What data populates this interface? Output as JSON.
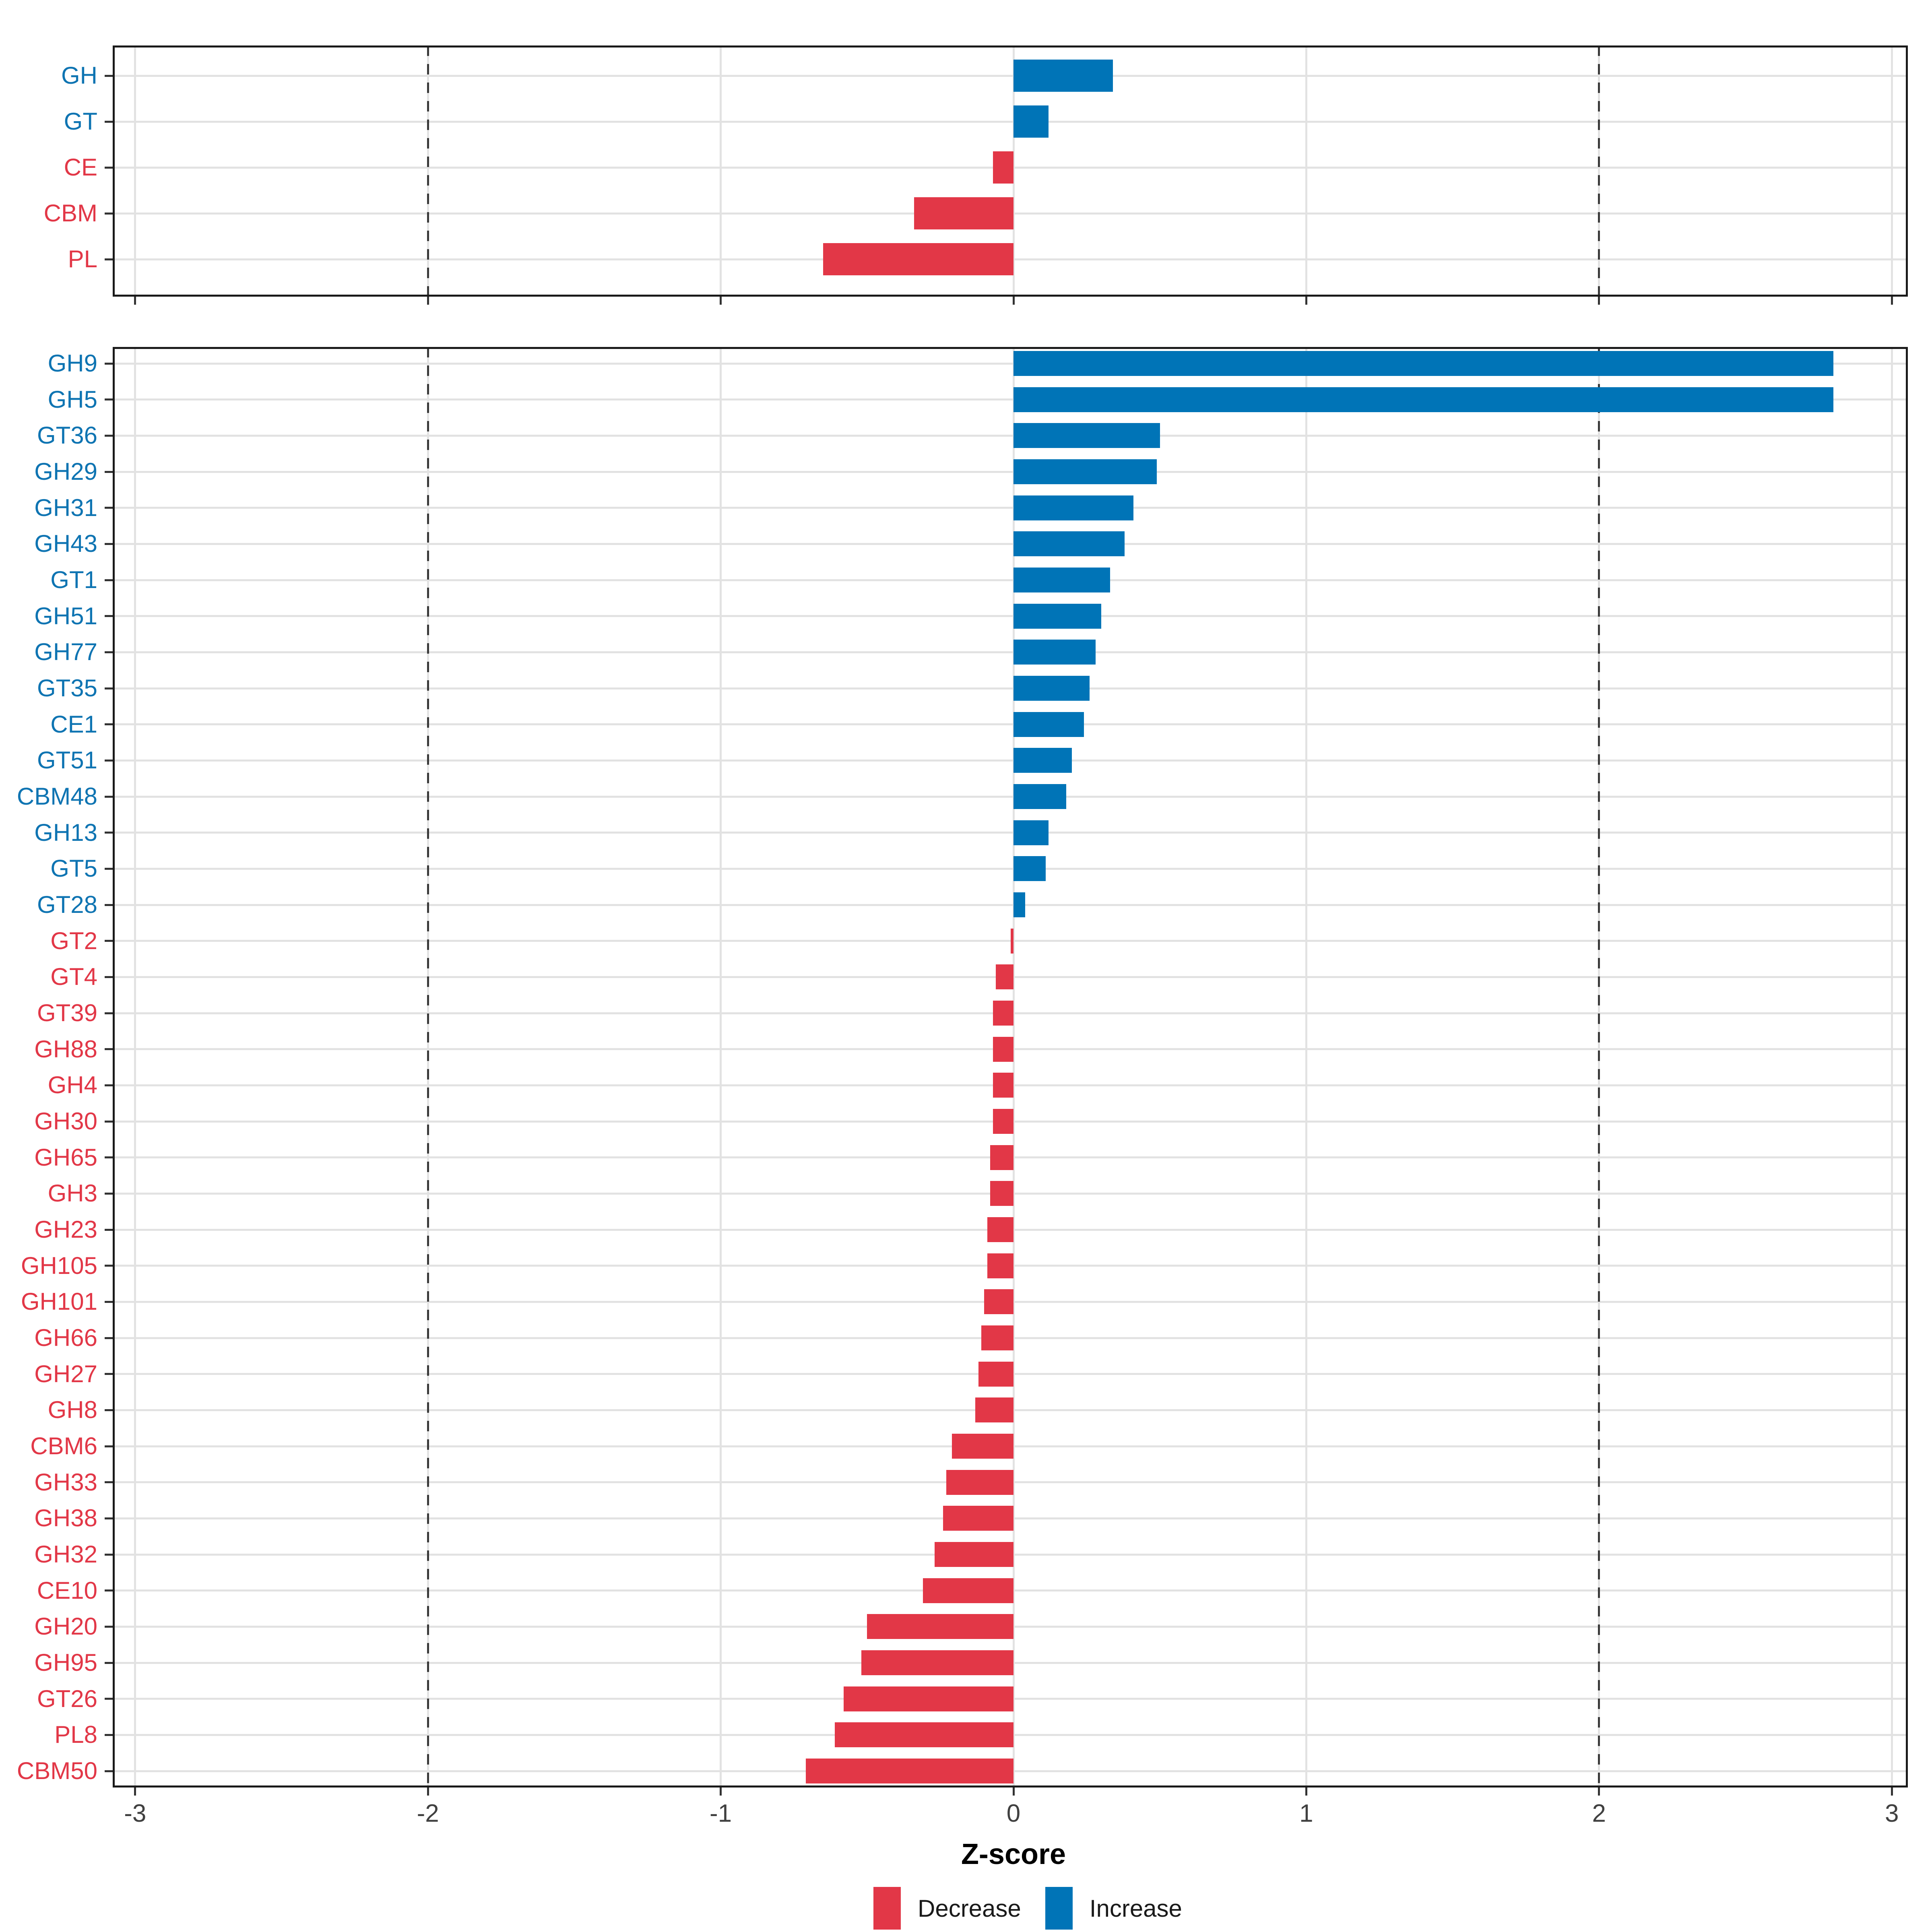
{
  "chart_data": {
    "type": "bar",
    "orientation": "horizontal",
    "xlabel": "Z-score",
    "x_ticks": [
      "-3",
      "-2",
      "-1",
      "0",
      "1",
      "2",
      "3"
    ],
    "x_tick_values": [
      -3,
      -2,
      -1,
      0,
      1,
      2,
      3
    ],
    "xlim": [
      -3.08,
      3.06
    ],
    "grid": true,
    "dashed_guides": [
      -2,
      2
    ],
    "colors": {
      "increase": "#0074b7",
      "decrease": "#e23747",
      "label_increase": "#0e74b2",
      "label_decrease": "#e23747",
      "gridline": "#e2e2e2",
      "axis_text": "#404040"
    },
    "legend": {
      "position": "bottom",
      "items": [
        {
          "label": "Decrease",
          "color": "#e23747"
        },
        {
          "label": "Increase",
          "color": "#0074b7"
        }
      ]
    },
    "panels": [
      {
        "name": "summary",
        "categories": [
          "GH",
          "GT",
          "CE",
          "CBM",
          "PL"
        ],
        "values": [
          0.34,
          0.12,
          -0.07,
          -0.34,
          -0.65
        ]
      },
      {
        "name": "families",
        "categories": [
          "GH9",
          "GH5",
          "GT36",
          "GH29",
          "GH31",
          "GH43",
          "GT1",
          "GH51",
          "GH77",
          "GT35",
          "CE1",
          "GT51",
          "CBM48",
          "GH13",
          "GT5",
          "GT28",
          "GT2",
          "GT4",
          "GT39",
          "GH88",
          "GH4",
          "GH30",
          "GH65",
          "GH3",
          "GH23",
          "GH105",
          "GH101",
          "GH66",
          "GH27",
          "GH8",
          "CBM6",
          "GH33",
          "GH38",
          "GH32",
          "CE10",
          "GH20",
          "GH95",
          "GT26",
          "PL8",
          "CBM50"
        ],
        "values": [
          2.8,
          2.8,
          0.5,
          0.49,
          0.41,
          0.38,
          0.33,
          0.3,
          0.28,
          0.26,
          0.24,
          0.2,
          0.18,
          0.12,
          0.11,
          0.04,
          -0.01,
          -0.06,
          -0.07,
          -0.07,
          -0.07,
          -0.07,
          -0.08,
          -0.08,
          -0.09,
          -0.09,
          -0.1,
          -0.11,
          -0.12,
          -0.13,
          -0.21,
          -0.23,
          -0.24,
          -0.27,
          -0.31,
          -0.5,
          -0.52,
          -0.58,
          -0.61,
          -0.71
        ]
      }
    ]
  }
}
